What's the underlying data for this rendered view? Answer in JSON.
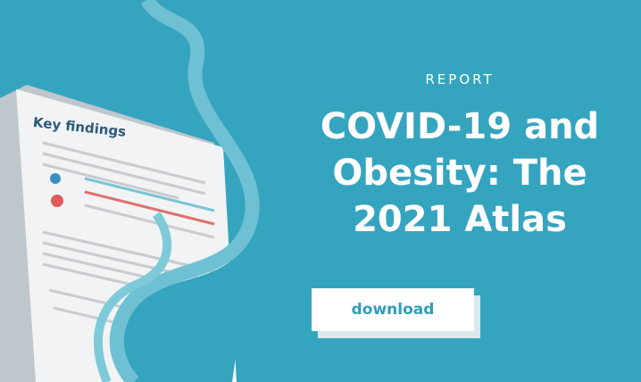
{
  "header": {
    "label": "REPORT",
    "title": "COVID-19 and Obesity: The 2021 Atlas"
  },
  "button": {
    "label": "download"
  },
  "document": {
    "heading": "Key findings"
  }
}
